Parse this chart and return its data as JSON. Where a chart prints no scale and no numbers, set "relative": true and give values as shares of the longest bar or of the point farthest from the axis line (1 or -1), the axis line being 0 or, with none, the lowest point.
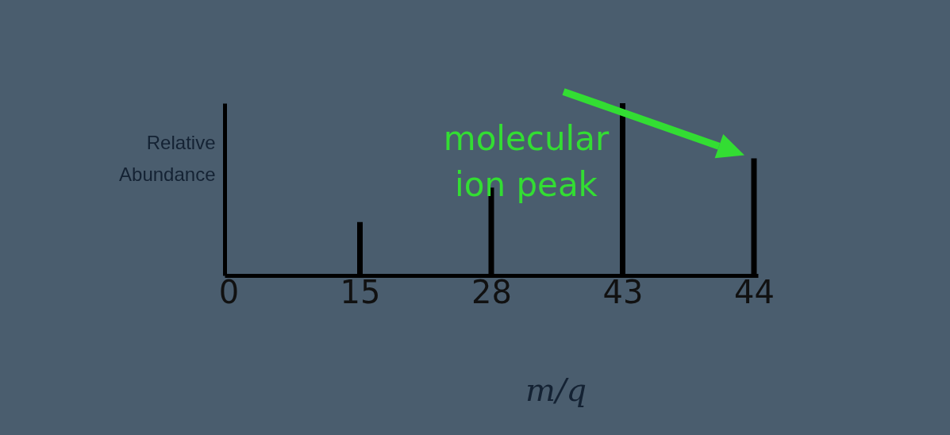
{
  "chart_data": {
    "type": "bar",
    "relative": true,
    "xlabel": "m/q",
    "ylabel": "Relative\nAbundance",
    "categories": [
      "0",
      "15",
      "28",
      "43",
      "44"
    ],
    "values": [
      null,
      0.31,
      0.51,
      1,
      0.68
    ],
    "color": "#000000",
    "annotations": [
      "molecular\nion peak"
    ],
    "grid": false
  }
}
